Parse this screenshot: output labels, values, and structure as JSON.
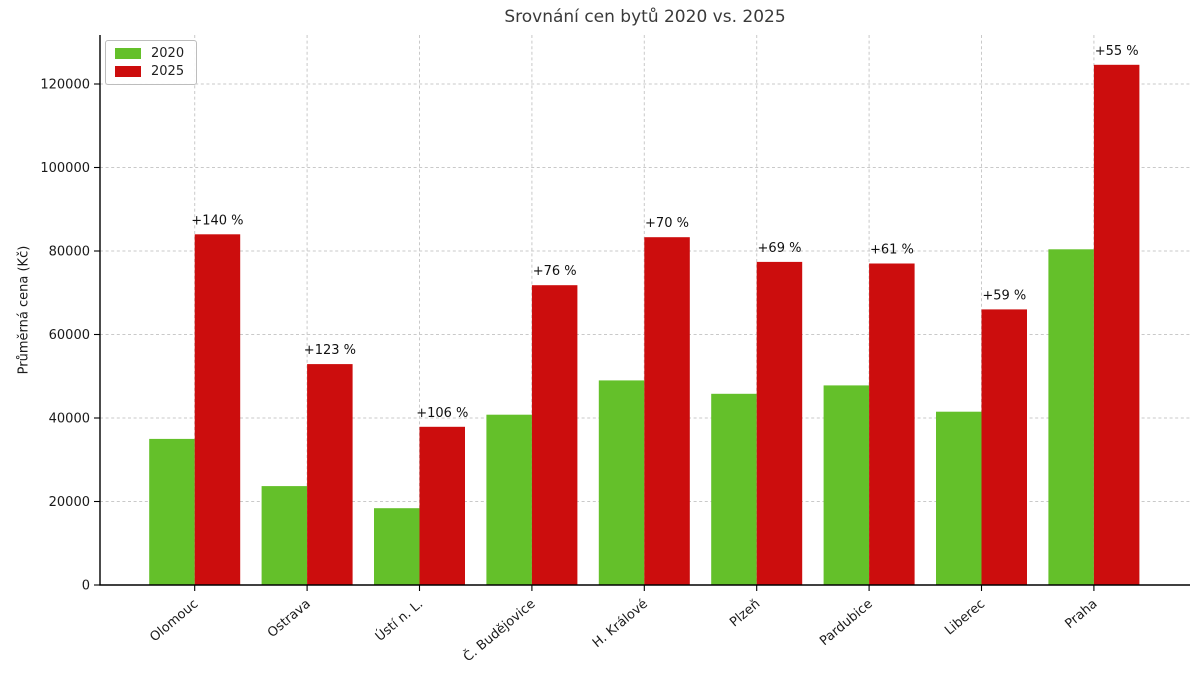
{
  "chart_data": {
    "type": "bar",
    "title": "Srovnání cen bytů 2020 vs. 2025",
    "ylabel": "Průměrná cena (Kč)",
    "xlabel": "",
    "categories": [
      "Olomouc",
      "Ostrava",
      "Ústí n. L.",
      "Č. Budějovice",
      "H. Králové",
      "Plzeň",
      "Pardubice",
      "Liberec",
      "Praha"
    ],
    "series": [
      {
        "name": "2020",
        "color": "#64c02a",
        "values": [
          35000,
          23700,
          18400,
          40800,
          49000,
          45800,
          47800,
          41500,
          80400
        ]
      },
      {
        "name": "2025",
        "color": "#cc0d0d",
        "values": [
          84000,
          52900,
          37900,
          71800,
          83300,
          77400,
          77000,
          66000,
          124600
        ]
      }
    ],
    "pct_labels": [
      "+140 %",
      "+123 %",
      "+106 %",
      "+76 %",
      "+70 %",
      "+69 %",
      "+61 %",
      "+59 %",
      "+55 %"
    ],
    "yticks": [
      0,
      20000,
      40000,
      60000,
      80000,
      100000,
      120000
    ],
    "ylim": [
      0,
      131500
    ],
    "grid": true,
    "legend_position": "upper left"
  }
}
